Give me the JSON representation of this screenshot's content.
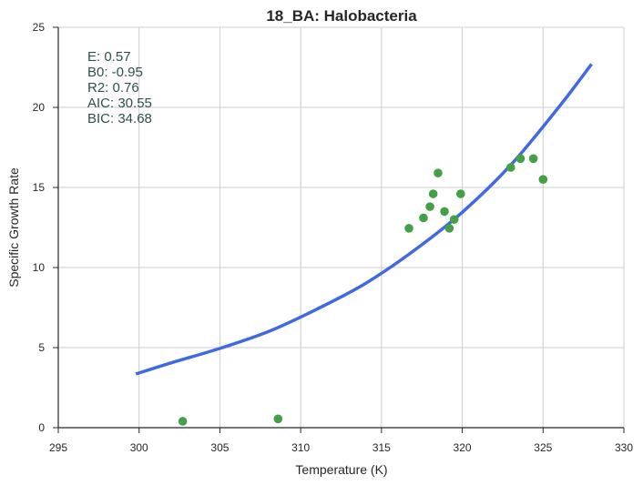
{
  "chart_data": {
    "type": "scatter",
    "title": "18_BA: Halobacteria",
    "xlabel": "Temperature (K)",
    "ylabel": "Specific Growth Rate",
    "xlim": [
      295,
      330
    ],
    "ylim": [
      0,
      25
    ],
    "x_ticks": [
      "295",
      "300",
      "305",
      "310",
      "315",
      "320",
      "325",
      "330"
    ],
    "y_ticks": [
      "0",
      "5",
      "10",
      "15",
      "20",
      "25"
    ],
    "grid": true,
    "colors": {
      "points": "#43a047",
      "fit": "#4169e1",
      "stats_text": "#2f4f4f",
      "grid": "#cccccc"
    },
    "points": [
      {
        "x": 302.7,
        "y": 0.4
      },
      {
        "x": 308.6,
        "y": 0.55
      },
      {
        "x": 316.7,
        "y": 12.45
      },
      {
        "x": 317.6,
        "y": 13.1
      },
      {
        "x": 318.0,
        "y": 13.8
      },
      {
        "x": 318.2,
        "y": 14.6
      },
      {
        "x": 318.5,
        "y": 15.9
      },
      {
        "x": 318.9,
        "y": 13.5
      },
      {
        "x": 319.2,
        "y": 12.45
      },
      {
        "x": 319.5,
        "y": 13.0
      },
      {
        "x": 319.9,
        "y": 14.6
      },
      {
        "x": 323.0,
        "y": 16.25
      },
      {
        "x": 323.6,
        "y": 16.8
      },
      {
        "x": 324.4,
        "y": 16.8
      },
      {
        "x": 325.0,
        "y": 15.5
      }
    ],
    "fit_curve": [
      {
        "x": 299.8,
        "y": 3.35
      },
      {
        "x": 302,
        "y": 4.05
      },
      {
        "x": 305,
        "y": 4.95
      },
      {
        "x": 308,
        "y": 6.0
      },
      {
        "x": 311,
        "y": 7.4
      },
      {
        "x": 314,
        "y": 9.0
      },
      {
        "x": 317,
        "y": 11.05
      },
      {
        "x": 320,
        "y": 13.45
      },
      {
        "x": 323,
        "y": 16.4
      },
      {
        "x": 326,
        "y": 20.05
      },
      {
        "x": 328.0,
        "y": 22.7
      }
    ],
    "annotations": [
      "E:  0.57",
      "B0:  -0.95",
      "R2:  0.76",
      "AIC: 30.55",
      "BIC: 34.68"
    ]
  }
}
